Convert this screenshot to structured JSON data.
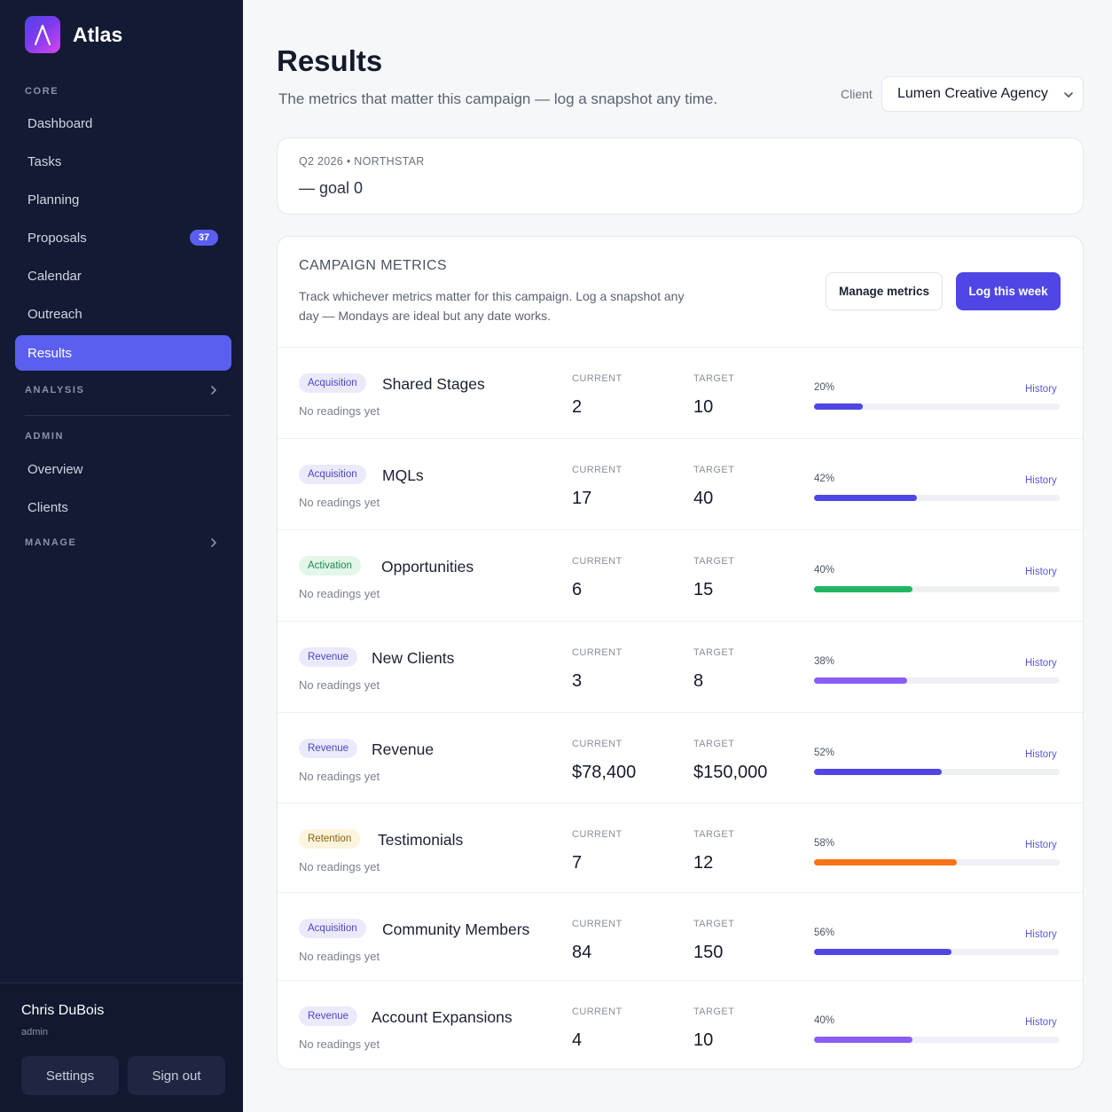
{
  "app": {
    "name": "Atlas"
  },
  "sidebar": {
    "core_label": "CORE",
    "core_items": [
      {
        "label": "Dashboard"
      },
      {
        "label": "Tasks"
      },
      {
        "label": "Planning"
      },
      {
        "label": "Proposals",
        "badge": "37"
      },
      {
        "label": "Calendar"
      },
      {
        "label": "Outreach"
      },
      {
        "label": "Results",
        "active": true
      }
    ],
    "analysis_label": "ANALYSIS",
    "admin_label": "ADMIN",
    "admin_items": [
      {
        "label": "Overview"
      },
      {
        "label": "Clients"
      }
    ],
    "manage_label": "MANAGE",
    "user": {
      "name": "Chris DuBois",
      "role": "admin"
    },
    "settings_label": "Settings",
    "signout_label": "Sign out"
  },
  "header": {
    "title": "Results",
    "subtitle": "The metrics that matter this campaign — log a snapshot any time.",
    "client_label": "Client",
    "client_value": "Lumen Creative Agency"
  },
  "goal": {
    "eyebrow": "Q2 2026 • NORTHSTAR",
    "text": "— goal 0"
  },
  "metrics": {
    "title": "CAMPAIGN METRICS",
    "description": "Track whichever metrics matter for this campaign. Log a snapshot any day — Mondays are ideal but any date works.",
    "manage_label": "Manage metrics",
    "log_label": "Log this week",
    "current_label": "CURRENT",
    "target_label": "TARGET",
    "no_readings": "No readings yet",
    "history_label": "History",
    "rows": [
      {
        "tag": "Acquisition",
        "name": "Shared Stages",
        "current": "2",
        "target": "10",
        "percent": "20%",
        "progress": 0.2,
        "color": "#4f46e5"
      },
      {
        "tag": "Acquisition",
        "name": "MQLs",
        "current": "17",
        "target": "40",
        "percent": "42%",
        "progress": 0.42,
        "color": "#4f46e5"
      },
      {
        "tag": "Activation",
        "name": "Opportunities",
        "current": "6",
        "target": "15",
        "percent": "40%",
        "progress": 0.4,
        "color": "#22b561"
      },
      {
        "tag": "Revenue",
        "name": "New Clients",
        "current": "3",
        "target": "8",
        "percent": "38%",
        "progress": 0.38,
        "color": "#8b5cf6"
      },
      {
        "tag": "Revenue",
        "name": "Revenue",
        "current": "$78,400",
        "target": "$150,000",
        "percent": "52%",
        "progress": 0.52,
        "color": "#4f46e5"
      },
      {
        "tag": "Retention",
        "name": "Testimonials",
        "current": "7",
        "target": "12",
        "percent": "58%",
        "progress": 0.58,
        "color": "#f97316"
      },
      {
        "tag": "Acquisition",
        "name": "Community Members",
        "current": "84",
        "target": "150",
        "percent": "56%",
        "progress": 0.56,
        "color": "#4f46e5"
      },
      {
        "tag": "Revenue",
        "name": "Account Expansions",
        "current": "4",
        "target": "10",
        "percent": "40%",
        "progress": 0.4,
        "color": "#8b5cf6"
      }
    ]
  }
}
